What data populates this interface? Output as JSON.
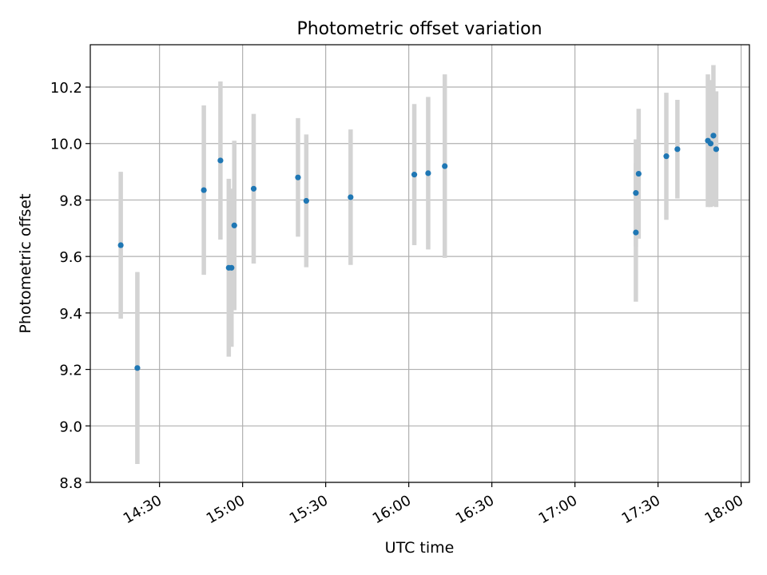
{
  "chart_data": {
    "type": "scatter",
    "title": "Photometric offset variation",
    "xlabel": "UTC time",
    "ylabel": "Photometric offset",
    "x_is_time": true,
    "xlim": [
      "14:05",
      "18:03"
    ],
    "ylim": [
      8.8,
      10.35
    ],
    "x_ticks": [
      "14:30",
      "15:00",
      "15:30",
      "16:00",
      "16:30",
      "17:00",
      "17:30",
      "18:00"
    ],
    "y_ticks": [
      "8.8",
      "9.0",
      "9.2",
      "9.4",
      "9.6",
      "9.8",
      "10.0",
      "10.2"
    ],
    "grid": true,
    "legend": "none",
    "marker_color": "#1f77b4",
    "errorbar_color": "#d3d3d3",
    "points": [
      {
        "time": "14:16",
        "y": 9.64,
        "err": 0.26
      },
      {
        "time": "14:22",
        "y": 9.205,
        "err": 0.34
      },
      {
        "time": "14:46",
        "y": 9.835,
        "err": 0.3
      },
      {
        "time": "14:52",
        "y": 9.94,
        "err": 0.28
      },
      {
        "time": "14:55",
        "y": 9.56,
        "err": 0.315
      },
      {
        "time": "14:56",
        "y": 9.56,
        "err": 0.28
      },
      {
        "time": "14:57",
        "y": 9.71,
        "err": 0.3
      },
      {
        "time": "15:04",
        "y": 9.84,
        "err": 0.265
      },
      {
        "time": "15:20",
        "y": 9.88,
        "err": 0.21
      },
      {
        "time": "15:23",
        "y": 9.797,
        "err": 0.235
      },
      {
        "time": "15:39",
        "y": 9.81,
        "err": 0.24
      },
      {
        "time": "16:02",
        "y": 9.89,
        "err": 0.25
      },
      {
        "time": "16:07",
        "y": 9.895,
        "err": 0.27
      },
      {
        "time": "16:13",
        "y": 9.92,
        "err": 0.325
      },
      {
        "time": "17:22",
        "y": 9.685,
        "err": 0.245
      },
      {
        "time": "17:22",
        "y": 9.825,
        "err": 0.19
      },
      {
        "time": "17:23",
        "y": 9.893,
        "err": 0.23
      },
      {
        "time": "17:33",
        "y": 9.955,
        "err": 0.225
      },
      {
        "time": "17:37",
        "y": 9.98,
        "err": 0.175
      },
      {
        "time": "17:48",
        "y": 10.01,
        "err": 0.235
      },
      {
        "time": "17:49",
        "y": 10.0,
        "err": 0.225
      },
      {
        "time": "17:50",
        "y": 10.028,
        "err": 0.25
      },
      {
        "time": "17:51",
        "y": 9.98,
        "err": 0.205
      }
    ]
  }
}
